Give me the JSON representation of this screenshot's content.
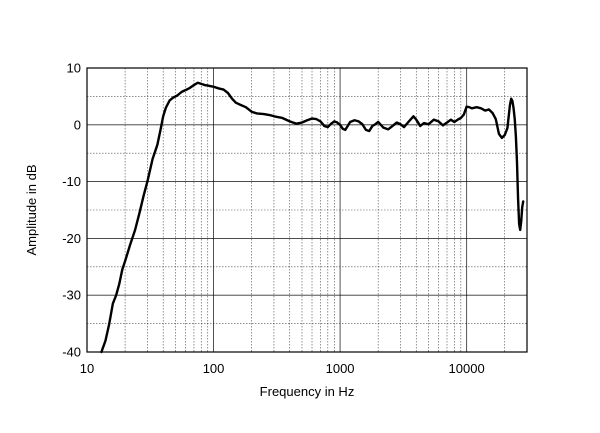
{
  "chart_data": {
    "type": "line",
    "xlabel": "Frequency in Hz",
    "ylabel": "Amplitude in dB",
    "x_scale": "log",
    "xlim": [
      10,
      30000
    ],
    "ylim": [
      -40,
      10
    ],
    "x_ticks": [
      10,
      100,
      1000,
      10000
    ],
    "x_tick_labels": [
      "10",
      "100",
      "1000",
      "10000"
    ],
    "y_ticks": [
      10,
      0,
      -10,
      -20,
      -30,
      -40
    ],
    "y_tick_labels": [
      "10",
      "0",
      "-10",
      "-20",
      "-30",
      "-40"
    ],
    "grid": true,
    "series": [
      {
        "color": "#000000",
        "x": [
          13,
          14,
          15,
          16,
          17,
          18,
          19,
          20,
          22,
          24,
          26,
          28,
          30,
          33,
          36,
          38,
          40,
          42,
          45,
          48,
          52,
          56,
          60,
          65,
          70,
          75,
          80,
          85,
          90,
          95,
          100,
          110,
          120,
          130,
          140,
          150,
          160,
          180,
          200,
          220,
          250,
          280,
          300,
          350,
          400,
          450,
          500,
          550,
          600,
          650,
          700,
          750,
          800,
          850,
          900,
          950,
          1000,
          1050,
          1100,
          1200,
          1300,
          1400,
          1500,
          1600,
          1700,
          1800,
          1900,
          2000,
          2200,
          2400,
          2600,
          2800,
          3000,
          3200,
          3500,
          3800,
          4000,
          4300,
          4600,
          5000,
          5500,
          6000,
          6500,
          7000,
          7500,
          8000,
          8500,
          9000,
          9500,
          10000,
          10500,
          11000,
          12000,
          13000,
          14000,
          15000,
          16000,
          17000,
          18000,
          19000,
          20000,
          21000,
          22000,
          22500,
          23000,
          23500,
          24000,
          24500,
          25000,
          25500,
          26000,
          26500,
          27000,
          27500,
          28000
        ],
        "y": [
          -40,
          -38,
          -35,
          -31.5,
          -30,
          -28,
          -25.5,
          -24,
          -21,
          -18.5,
          -15.5,
          -12.5,
          -10,
          -6,
          -3.5,
          -1,
          1.5,
          3,
          4.3,
          4.8,
          5.2,
          5.8,
          6.1,
          6.5,
          7,
          7.4,
          7.2,
          7,
          6.9,
          6.8,
          6.7,
          6.4,
          6.2,
          5.6,
          4.6,
          3.9,
          3.6,
          3.1,
          2.3,
          2,
          1.9,
          1.7,
          1.5,
          1.2,
          0.6,
          0.2,
          0.4,
          0.8,
          1.1,
          1,
          0.6,
          -0.2,
          -0.4,
          0.2,
          0.6,
          0.4,
          0,
          -0.7,
          -0.9,
          0.5,
          0.8,
          0.6,
          0.1,
          -0.9,
          -1.1,
          -0.2,
          0.1,
          0.5,
          -0.5,
          -0.8,
          -0.2,
          0.4,
          0.1,
          -0.4,
          0.6,
          1.5,
          0.9,
          -0.2,
          0.3,
          0.1,
          0.9,
          0.6,
          -0.1,
          0.4,
          0.9,
          0.5,
          0.9,
          1.2,
          1.8,
          3.2,
          3.1,
          2.9,
          3.1,
          2.9,
          2.5,
          2.7,
          2.1,
          1,
          -1.6,
          -2.3,
          -1.8,
          -0.6,
          3.5,
          4.6,
          4.2,
          2.9,
          1,
          -2,
          -6.5,
          -13,
          -17.5,
          -18.5,
          -17,
          -14.5,
          -13.5
        ]
      }
    ]
  }
}
